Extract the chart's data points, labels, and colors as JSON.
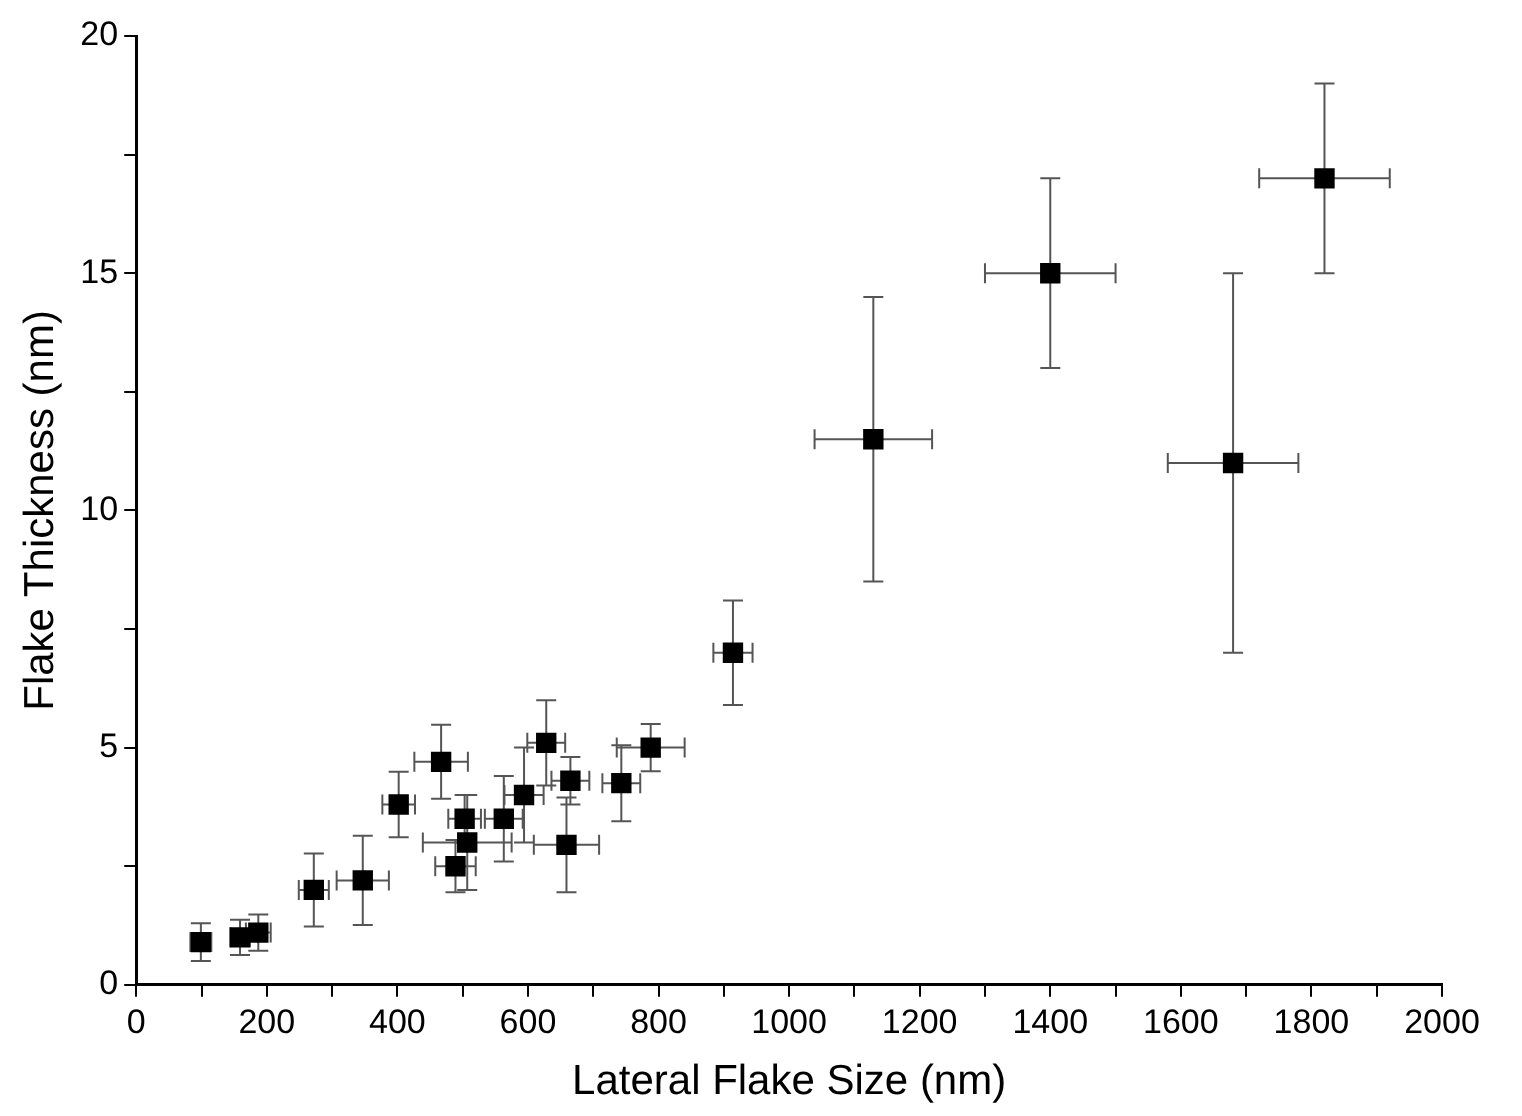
{
  "chart_data": {
    "type": "scatter",
    "xlabel": "Lateral Flake Size (nm)",
    "ylabel": "Flake Thickness (nm)",
    "x": [
      99,
      159,
      187,
      272,
      347,
      402,
      467,
      503,
      507,
      489,
      563,
      594,
      628,
      665,
      659,
      743,
      788,
      914,
      1129,
      1400,
      1680,
      1820
    ],
    "values": [
      0.9,
      1.0,
      1.1,
      2.0,
      2.2,
      3.8,
      4.7,
      3.5,
      3.0,
      2.5,
      3.5,
      4.0,
      5.1,
      4.3,
      2.95,
      4.25,
      5.0,
      7.0,
      11.5,
      15,
      11,
      17
    ],
    "errors": [
      0.4,
      0.37,
      0.38,
      0.77,
      0.94,
      0.69,
      0.78,
      0.5,
      1.0,
      0.55,
      0.9,
      1.0,
      0.9,
      0.5,
      1.0,
      0.8,
      0.5,
      1.1,
      3,
      2,
      4,
      2
    ],
    "xerrors": [
      16,
      15,
      19,
      23,
      40,
      25,
      41,
      25,
      68,
      31,
      29,
      30,
      29,
      29,
      50,
      29,
      52,
      30,
      90,
      100,
      100,
      100
    ],
    "color": "#000000",
    "marker": "square",
    "grid": false,
    "legend": false,
    "xlim": [
      0,
      2000
    ],
    "xticks": [
      0,
      {
        "value": 100,
        "label": null
      },
      200,
      {
        "value": 300,
        "label": null
      },
      400,
      {
        "value": 500,
        "label": null
      },
      600,
      {
        "value": 700,
        "label": null
      },
      800,
      {
        "value": 900,
        "label": null
      },
      1000,
      {
        "value": 1100,
        "label": null
      },
      1200,
      {
        "value": 1300,
        "label": null
      },
      1400,
      {
        "value": 1500,
        "label": null
      },
      1600,
      {
        "value": 1700,
        "label": null
      },
      1800,
      {
        "value": 1900,
        "label": null
      },
      2000
    ],
    "ylim": [
      0,
      20
    ],
    "yticks": [
      0,
      {
        "value": 2.5,
        "label": null
      },
      5,
      {
        "value": 7.5,
        "label": null
      },
      10,
      {
        "value": 12.5,
        "label": null
      },
      15,
      {
        "value": 17.5,
        "label": null
      },
      20
    ]
  }
}
